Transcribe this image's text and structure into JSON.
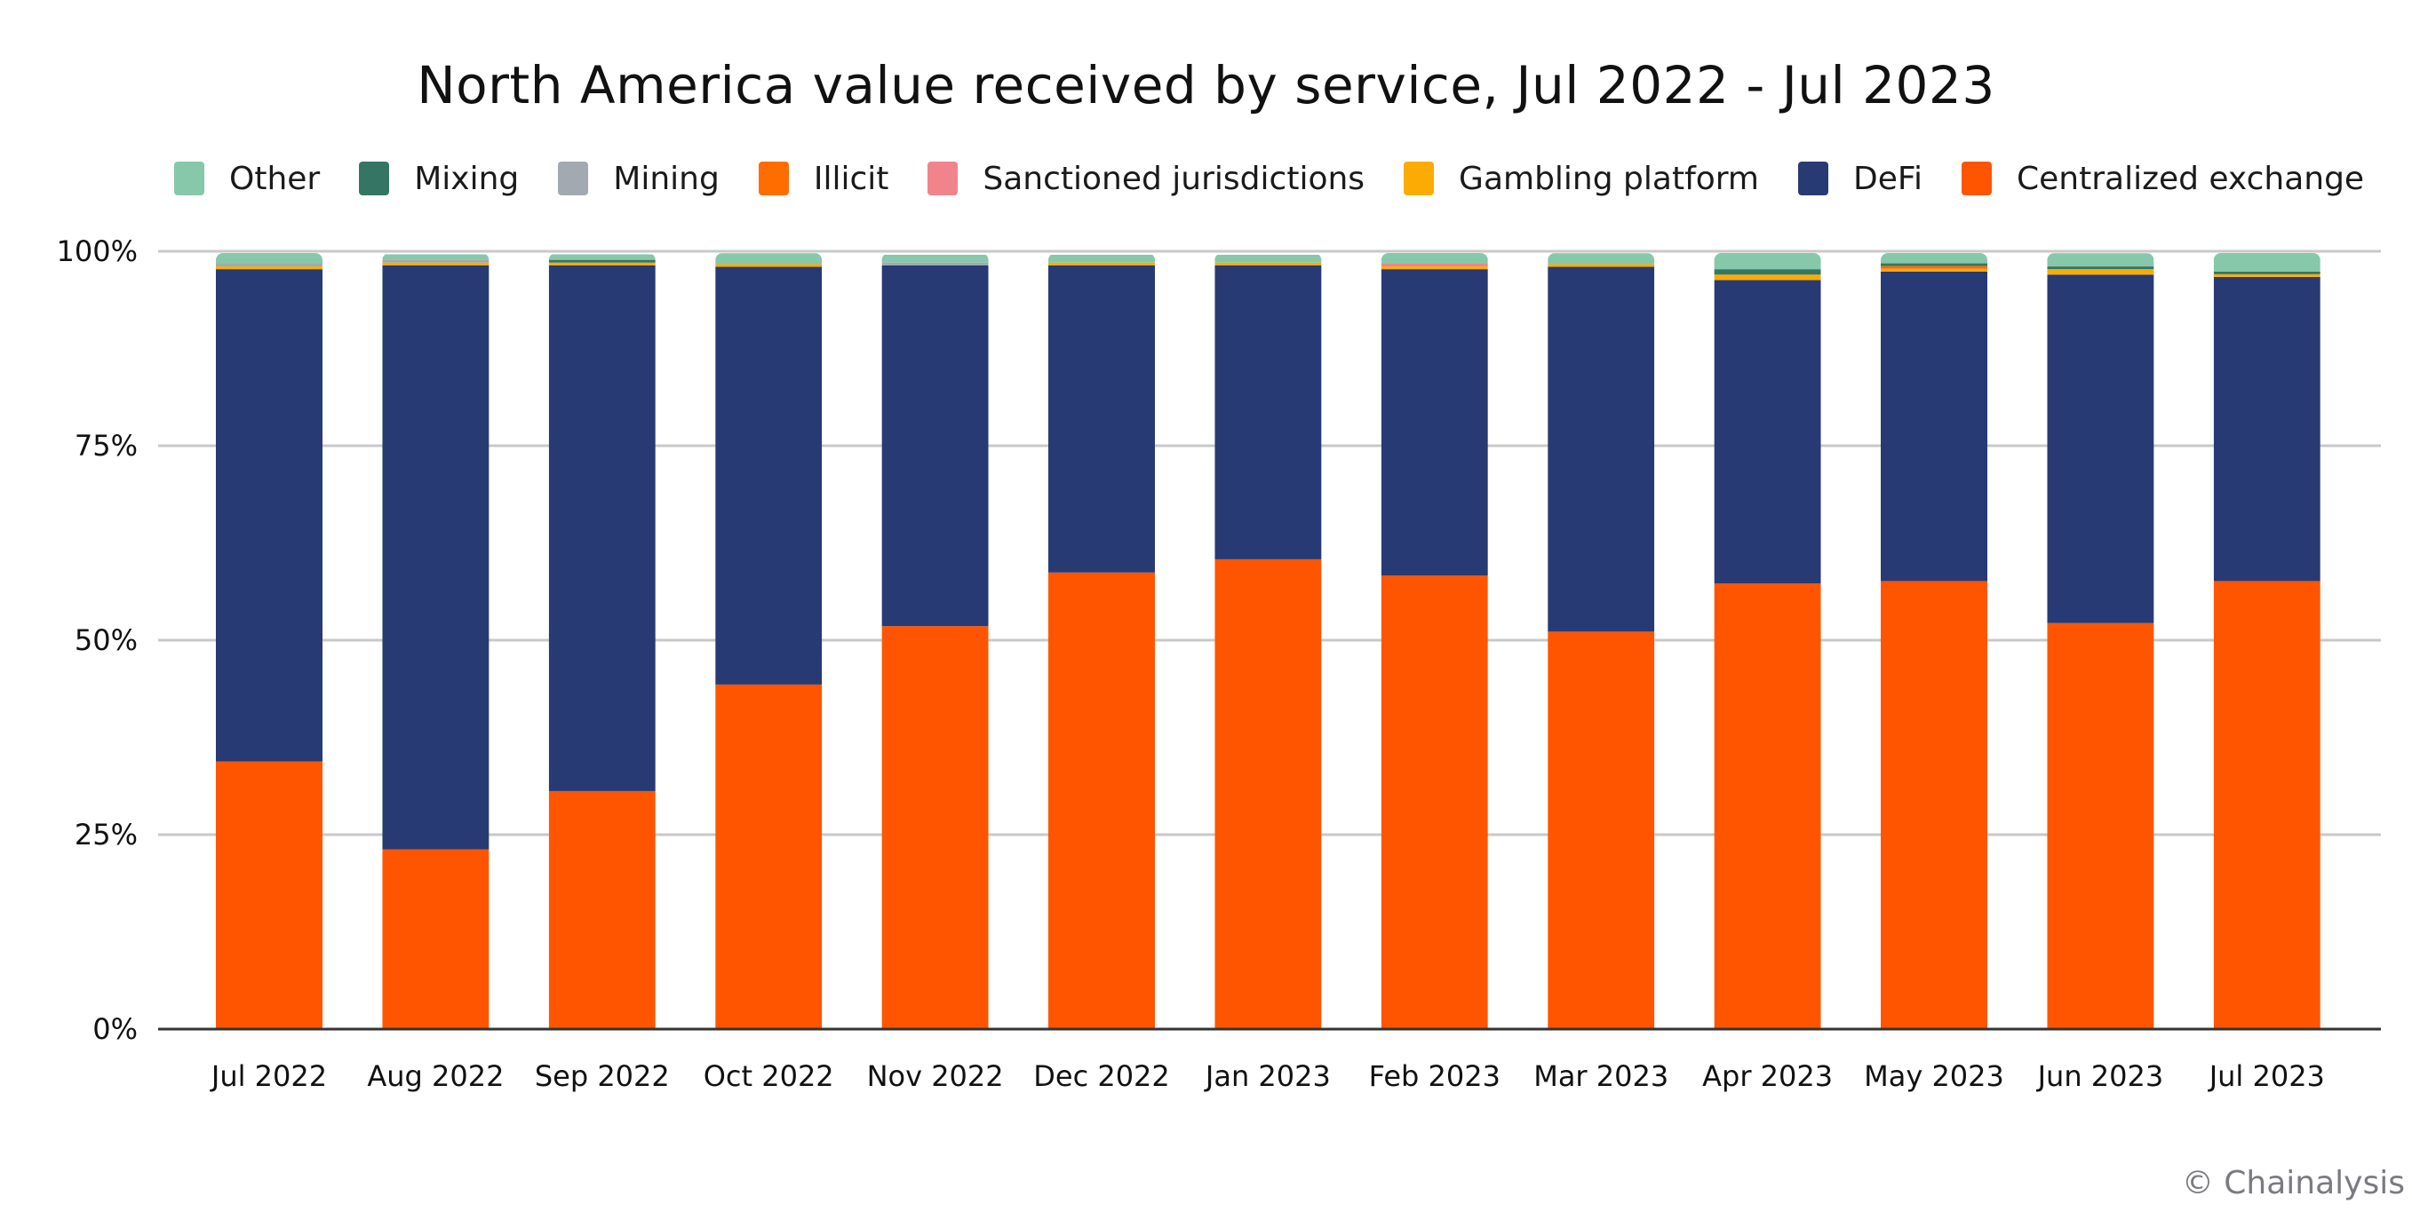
{
  "chart_data": {
    "type": "bar",
    "stacked": true,
    "title": "North America value received by service, Jul 2022 - Jul 2023",
    "xlabel": "",
    "ylabel": "",
    "ylim": [
      0,
      100
    ],
    "y_ticks": [
      "0%",
      "25%",
      "50%",
      "75%",
      "100%"
    ],
    "y_tick_values": [
      0,
      25,
      50,
      75,
      100
    ],
    "grid": true,
    "legend_position": "top",
    "categories": [
      "Jul 2022",
      "Aug 2022",
      "Sep 2022",
      "Oct 2022",
      "Nov 2022",
      "Dec 2022",
      "Jan 2023",
      "Feb 2023",
      "Mar 2023",
      "Apr 2023",
      "May 2023",
      "Jun 2023",
      "Jul 2023"
    ],
    "legend": [
      "Other",
      "Mixing",
      "Mining",
      "Illicit",
      "Sanctioned jurisdictions",
      "Gambling platform",
      "DeFi",
      "Centralized exchange"
    ],
    "series": [
      {
        "name": "Centralized exchange",
        "color": "#ff5500",
        "values": [
          34.4,
          23.1,
          30.6,
          44.3,
          51.8,
          58.7,
          60.4,
          58.3,
          51.1,
          57.3,
          57.6,
          52.2,
          57.6
        ]
      },
      {
        "name": "DeFi",
        "color": "#283a73",
        "values": [
          63.3,
          75.1,
          67.6,
          53.7,
          46.4,
          39.5,
          37.8,
          39.4,
          46.9,
          39.0,
          39.8,
          44.8,
          39.1
        ]
      },
      {
        "name": "Gambling platform",
        "color": "#fcab04",
        "values": [
          0.35,
          0.35,
          0.35,
          0.35,
          0.0,
          0.35,
          0.35,
          0.35,
          0.35,
          0.7,
          0.35,
          0.7,
          0.35
        ]
      },
      {
        "name": "Sanctioned jurisdictions",
        "color": "#f0848a",
        "values": [
          0,
          0,
          0,
          0,
          0,
          0,
          0,
          0.35,
          0,
          0,
          0,
          0,
          0
        ]
      },
      {
        "name": "Illicit",
        "color": "#ff6d00",
        "values": [
          0,
          0,
          0,
          0,
          0,
          0,
          0,
          0,
          0,
          0,
          0.35,
          0,
          0
        ]
      },
      {
        "name": "Mining",
        "color": "#a2a9b1",
        "values": [
          0.35,
          0.35,
          0,
          0,
          0.35,
          0,
          0,
          0,
          0,
          0,
          0,
          0,
          0
        ]
      },
      {
        "name": "Mixing",
        "color": "#357564",
        "values": [
          0,
          0,
          0.35,
          0,
          0,
          0,
          0,
          0,
          0,
          0.7,
          0.35,
          0.35,
          0.35
        ]
      },
      {
        "name": "Other",
        "color": "#86c8a9",
        "values": [
          1.4,
          0.7,
          0.7,
          1.4,
          1.0,
          1.0,
          1.0,
          1.4,
          1.4,
          2.1,
          1.4,
          1.7,
          2.4
        ]
      }
    ]
  },
  "legend_items": [
    {
      "label": "Other",
      "color": "#86c8a9"
    },
    {
      "label": "Mixing",
      "color": "#357564"
    },
    {
      "label": "Mining",
      "color": "#a2a9b1"
    },
    {
      "label": "Illicit",
      "color": "#ff6d00"
    },
    {
      "label": "Sanctioned jurisdictions",
      "color": "#f0848a"
    },
    {
      "label": "Gambling platform",
      "color": "#fcab04"
    },
    {
      "label": "DeFi",
      "color": "#283a73"
    },
    {
      "label": "Centralized exchange",
      "color": "#ff5500"
    }
  ],
  "watermark": "© Chainalysis"
}
